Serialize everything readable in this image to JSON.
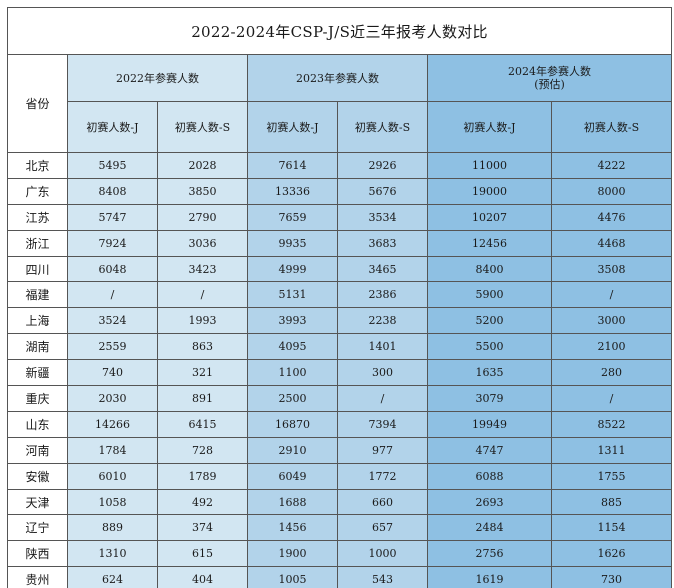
{
  "title": "2022-2024年CSP-J/S近三年报考人数对比",
  "header": {
    "province": "省份",
    "groups": [
      {
        "label": "2022年参赛人数"
      },
      {
        "label": "2023年参赛人数"
      },
      {
        "label": "2024年参赛人数",
        "note": "(预估)"
      }
    ],
    "sub": [
      "初赛人数-J",
      "初赛人数-S",
      "初赛人数-J",
      "初赛人数-S",
      "初赛人数-J",
      "初赛人数-S"
    ]
  },
  "colors": {
    "col_2022": "#d2e6f2",
    "col_2023": "#b2d3ea",
    "col_2024": "#8ec0e3",
    "border": "#555555"
  },
  "rows": [
    {
      "province": "北京",
      "j2022": "5495",
      "s2022": "2028",
      "j2023": "7614",
      "s2023": "2926",
      "j2024": "11000",
      "s2024": "4222"
    },
    {
      "province": "广东",
      "j2022": "8408",
      "s2022": "3850",
      "j2023": "13336",
      "s2023": "5676",
      "j2024": "19000",
      "s2024": "8000"
    },
    {
      "province": "江苏",
      "j2022": "5747",
      "s2022": "2790",
      "j2023": "7659",
      "s2023": "3534",
      "j2024": "10207",
      "s2024": "4476"
    },
    {
      "province": "浙江",
      "j2022": "7924",
      "s2022": "3036",
      "j2023": "9935",
      "s2023": "3683",
      "j2024": "12456",
      "s2024": "4468"
    },
    {
      "province": "四川",
      "j2022": "6048",
      "s2022": "3423",
      "j2023": "4999",
      "s2023": "3465",
      "j2024": "8400",
      "s2024": "3508"
    },
    {
      "province": "福建",
      "j2022": "/",
      "s2022": "/",
      "j2023": "5131",
      "s2023": "2386",
      "j2024": "5900",
      "s2024": "/"
    },
    {
      "province": "上海",
      "j2022": "3524",
      "s2022": "1993",
      "j2023": "3993",
      "s2023": "2238",
      "j2024": "5200",
      "s2024": "3000"
    },
    {
      "province": "湖南",
      "j2022": "2559",
      "s2022": "863",
      "j2023": "4095",
      "s2023": "1401",
      "j2024": "5500",
      "s2024": "2100"
    },
    {
      "province": "新疆",
      "j2022": "740",
      "s2022": "321",
      "j2023": "1100",
      "s2023": "300",
      "j2024": "1635",
      "s2024": "280"
    },
    {
      "province": "重庆",
      "j2022": "2030",
      "s2022": "891",
      "j2023": "2500",
      "s2023": "/",
      "j2024": "3079",
      "s2024": "/"
    },
    {
      "province": "山东",
      "j2022": "14266",
      "s2022": "6415",
      "j2023": "16870",
      "s2023": "7394",
      "j2024": "19949",
      "s2024": "8522"
    },
    {
      "province": "河南",
      "j2022": "1784",
      "s2022": "728",
      "j2023": "2910",
      "s2023": "977",
      "j2024": "4747",
      "s2024": "1311"
    },
    {
      "province": "安徽",
      "j2022": "6010",
      "s2022": "1789",
      "j2023": "6049",
      "s2023": "1772",
      "j2024": "6088",
      "s2024": "1755"
    },
    {
      "province": "天津",
      "j2022": "1058",
      "s2022": "492",
      "j2023": "1688",
      "s2023": "660",
      "j2024": "2693",
      "s2024": "885"
    },
    {
      "province": "辽宁",
      "j2022": "889",
      "s2022": "374",
      "j2023": "1456",
      "s2023": "657",
      "j2024": "2484",
      "s2024": "1154"
    },
    {
      "province": "陕西",
      "j2022": "1310",
      "s2022": "615",
      "j2023": "1900",
      "s2023": "1000",
      "j2024": "2756",
      "s2024": "1626"
    },
    {
      "province": "贵州",
      "j2022": "624",
      "s2022": "404",
      "j2023": "1005",
      "s2023": "543",
      "j2024": "1619",
      "s2024": "730"
    }
  ]
}
